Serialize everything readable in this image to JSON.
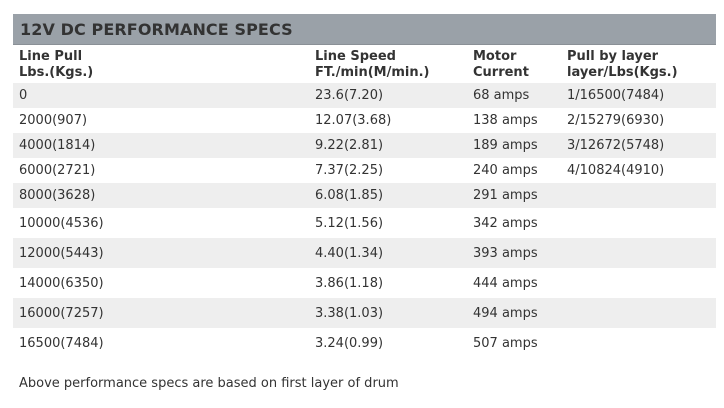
{
  "title": "12V DC PERFORMANCE SPECS",
  "headers": [
    [
      "Line Pull",
      "Lbs.(Kgs.)"
    ],
    [
      "Line Speed",
      "FT./min(M/min.)"
    ],
    [
      "Motor",
      "Current"
    ],
    [
      "Pull by layer",
      "layer/Lbs(Kgs.)"
    ]
  ],
  "rows": [
    [
      "0",
      "23.6(7.20)",
      "68 amps",
      "1/16500(7484)"
    ],
    [
      "2000(907)",
      "12.07(3.68)",
      "138 amps",
      "2/15279(6930)"
    ],
    [
      "4000(1814)",
      "9.22(2.81)",
      "189 amps",
      "3/12672(5748)"
    ],
    [
      "6000(2721)",
      "7.37(2.25)",
      "240 amps",
      "4/10824(4910)"
    ],
    [
      "8000(3628)",
      "6.08(1.85)",
      "291 amps",
      ""
    ],
    [
      "10000(4536)",
      "5.12(1.56)",
      "342 amps",
      ""
    ],
    [
      "12000(5443)",
      "4.40(1.34)",
      "393 amps",
      ""
    ],
    [
      "14000(6350)",
      "3.86(1.18)",
      "444 amps",
      ""
    ],
    [
      "16000(7257)",
      "3.38(1.03)",
      "494 amps",
      ""
    ],
    [
      "16500(7484)",
      "3.24(0.99)",
      "507 amps",
      ""
    ]
  ],
  "footnote": "Above performance specs are based on first layer of drum"
}
